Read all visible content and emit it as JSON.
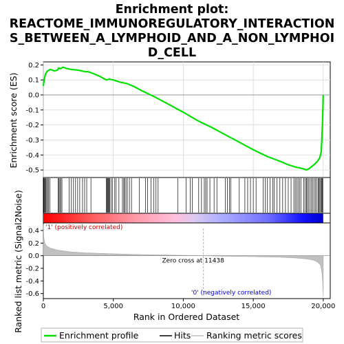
{
  "chart_data": {
    "type": "line",
    "title_lines": [
      "Enrichment plot:",
      "REACTOME_IMMUNOREGULATORY_INTERACTION",
      "S_BETWEEN_A_LYMPHOID_AND_A_NON_LYMPHOI",
      "D_CELL"
    ],
    "es_panel": {
      "ylabel": "Enrichment score (ES)",
      "ylim": [
        -0.55,
        0.22
      ],
      "yticks": [
        -0.5,
        -0.4,
        -0.3,
        -0.2,
        -0.1,
        0.0,
        0.1,
        0.2
      ],
      "ytick_labels": [
        "-0.5",
        "-0.4",
        "-0.3",
        "-0.2",
        "-0.1",
        "0.0",
        "0.1",
        "0.2"
      ],
      "grid": true,
      "line_color": "#00e000",
      "series": [
        {
          "name": "Enrichment profile",
          "x": [
            0,
            60,
            150,
            300,
            500,
            800,
            1000,
            1100,
            1250,
            1400,
            1700,
            2000,
            2500,
            3000,
            3200,
            3500,
            4000,
            4300,
            4500,
            4700,
            5000,
            5500,
            6000,
            6500,
            7000,
            8000,
            9000,
            10000,
            11000,
            11438,
            12000,
            13000,
            14000,
            15000,
            16000,
            17000,
            17500,
            18000,
            18500,
            18800,
            19000,
            19200,
            19400,
            19600,
            19750,
            19850,
            19900,
            19950,
            19980,
            20000
          ],
          "y": [
            0.06,
            0.1,
            0.14,
            0.16,
            0.17,
            0.16,
            0.165,
            0.18,
            0.175,
            0.185,
            0.175,
            0.17,
            0.165,
            0.155,
            0.155,
            0.145,
            0.125,
            0.11,
            0.1,
            0.105,
            0.1,
            0.085,
            0.075,
            0.055,
            0.03,
            -0.015,
            -0.065,
            -0.115,
            -0.17,
            -0.19,
            -0.215,
            -0.265,
            -0.315,
            -0.365,
            -0.41,
            -0.445,
            -0.465,
            -0.48,
            -0.49,
            -0.5,
            -0.49,
            -0.475,
            -0.46,
            -0.44,
            -0.42,
            -0.38,
            -0.3,
            -0.18,
            -0.08,
            0.0
          ]
        }
      ]
    },
    "hits": {
      "name": "Hits",
      "positions": [
        30,
        70,
        120,
        180,
        240,
        300,
        380,
        460,
        1050,
        1120,
        1180,
        1250,
        1330,
        1850,
        2000,
        2150,
        2300,
        2450,
        2600,
        2800,
        2950,
        3100,
        3400,
        4500,
        4550,
        4600,
        4650,
        4700,
        4750,
        4850,
        4950,
        5100,
        5200,
        5400,
        5650,
        5750,
        5800,
        5900,
        6000,
        6150,
        6300,
        6850,
        7300,
        7450,
        7700,
        7900,
        8050,
        8200,
        9600,
        10200,
        10500,
        10650,
        11100,
        11300,
        11500,
        11600,
        11700,
        11900,
        12200,
        12400,
        13000,
        13150,
        13300,
        13400,
        14000,
        14400,
        14600,
        14800,
        15000,
        15200,
        15700,
        15850,
        16000,
        16200,
        16400,
        16500,
        16700,
        16900,
        17100,
        17300,
        17500,
        17700,
        17900,
        18000,
        18100,
        18200,
        18300,
        18400,
        18600,
        18700,
        18800,
        18850,
        18950,
        19050,
        19150,
        19250,
        19350,
        19450,
        19550,
        19650,
        19700,
        19760,
        19820,
        19880,
        19930,
        19970
      ]
    },
    "ranked_metric": {
      "ylabel": "Ranked list metric (Signal2Noise)",
      "xlabel": "Rank in Ordered Dataset",
      "xlim": [
        0,
        20500
      ],
      "ylim": [
        -0.68,
        0.52
      ],
      "yticks": [
        -0.6,
        -0.4,
        -0.2,
        0.0,
        0.2,
        0.4
      ],
      "ytick_labels": [
        "-0.6",
        "-0.4",
        "-0.2",
        "0.0",
        "0.2",
        "0.4"
      ],
      "xticks": [
        0,
        5000,
        10000,
        15000,
        20000
      ],
      "xtick_labels": [
        "0",
        "5,000",
        "10,000",
        "15,000",
        "20,000"
      ],
      "zero_cross": 11438,
      "zero_cross_label": "Zero cross at 11438",
      "pos_label": "'1' (positively correlated)",
      "neg_label": "'0' (negatively correlated)",
      "x": [
        0,
        30,
        100,
        250,
        500,
        1000,
        2000,
        3000,
        5000,
        7000,
        9000,
        11438,
        13000,
        15000,
        17000,
        18000,
        18800,
        19300,
        19600,
        19800,
        19900,
        19960,
        20000
      ],
      "y": [
        0.5,
        0.3,
        0.2,
        0.15,
        0.12,
        0.09,
        0.06,
        0.045,
        0.03,
        0.018,
        0.01,
        0.0,
        -0.008,
        -0.015,
        -0.025,
        -0.035,
        -0.05,
        -0.07,
        -0.1,
        -0.15,
        -0.25,
        -0.4,
        -0.65
      ]
    },
    "legend": [
      {
        "label": "Enrichment profile",
        "color": "#00e000"
      },
      {
        "label": "Hits",
        "color": "#000000"
      },
      {
        "label": "Ranking metric scores",
        "color": "#c0c0c0"
      }
    ]
  }
}
